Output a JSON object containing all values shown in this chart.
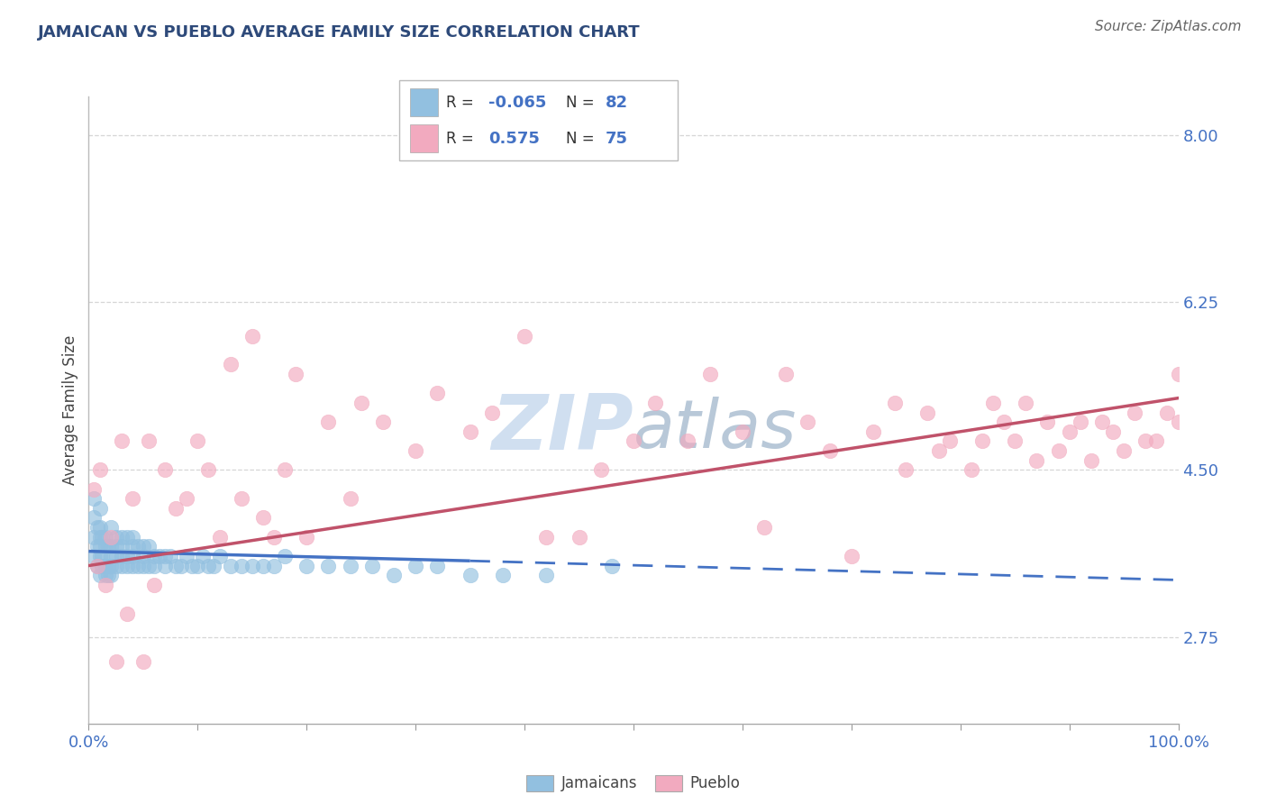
{
  "title": "JAMAICAN VS PUEBLO AVERAGE FAMILY SIZE CORRELATION CHART",
  "source": "Source: ZipAtlas.com",
  "ylabel": "Average Family Size",
  "xlim": [
    0,
    100
  ],
  "ylim": [
    1.85,
    8.4
  ],
  "yticks": [
    2.75,
    4.5,
    6.25,
    8.0
  ],
  "title_color": "#2E4A7A",
  "axis_color": "#4472C4",
  "source_color": "#666666",
  "blue_color": "#92C0E0",
  "pink_color": "#F2AABF",
  "blue_line_color": "#4472C4",
  "pink_line_color": "#C0526A",
  "grid_color": "#CCCCCC",
  "watermark_color": "#D0DFF0",
  "legend_R_blue": "-0.065",
  "legend_N_blue": "82",
  "legend_R_pink": "0.575",
  "legend_N_pink": "75",
  "blue_scatter_x": [
    0.5,
    0.5,
    0.5,
    0.5,
    0.8,
    0.8,
    0.8,
    1.0,
    1.0,
    1.0,
    1.0,
    1.0,
    1.0,
    1.2,
    1.2,
    1.2,
    1.5,
    1.5,
    1.5,
    1.5,
    1.8,
    1.8,
    1.8,
    2.0,
    2.0,
    2.0,
    2.0,
    2.0,
    2.5,
    2.5,
    2.5,
    2.5,
    3.0,
    3.0,
    3.0,
    3.0,
    3.5,
    3.5,
    3.5,
    4.0,
    4.0,
    4.0,
    4.0,
    4.5,
    4.5,
    5.0,
    5.0,
    5.0,
    5.5,
    5.5,
    6.0,
    6.0,
    6.5,
    7.0,
    7.0,
    7.5,
    8.0,
    8.5,
    9.0,
    9.5,
    10.0,
    10.5,
    11.0,
    11.5,
    12.0,
    13.0,
    14.0,
    15.0,
    16.0,
    17.0,
    18.0,
    20.0,
    22.0,
    24.0,
    26.0,
    28.0,
    30.0,
    32.0,
    35.0,
    38.0,
    42.0,
    48.0
  ],
  "blue_scatter_y": [
    3.6,
    3.8,
    4.0,
    4.2,
    3.5,
    3.7,
    3.9,
    3.4,
    3.6,
    3.7,
    3.8,
    3.9,
    4.1,
    3.5,
    3.6,
    3.8,
    3.4,
    3.5,
    3.7,
    3.8,
    3.4,
    3.5,
    3.7,
    3.4,
    3.5,
    3.6,
    3.7,
    3.9,
    3.5,
    3.6,
    3.7,
    3.8,
    3.5,
    3.6,
    3.7,
    3.8,
    3.5,
    3.6,
    3.8,
    3.5,
    3.6,
    3.7,
    3.8,
    3.5,
    3.7,
    3.5,
    3.6,
    3.7,
    3.5,
    3.7,
    3.5,
    3.6,
    3.6,
    3.5,
    3.6,
    3.6,
    3.5,
    3.5,
    3.6,
    3.5,
    3.5,
    3.6,
    3.5,
    3.5,
    3.6,
    3.5,
    3.5,
    3.5,
    3.5,
    3.5,
    3.6,
    3.5,
    3.5,
    3.5,
    3.5,
    3.4,
    3.5,
    3.5,
    3.4,
    3.4,
    3.4,
    3.5
  ],
  "pink_scatter_x": [
    0.5,
    0.8,
    1.0,
    1.5,
    2.0,
    2.5,
    3.0,
    3.5,
    4.0,
    5.0,
    5.5,
    6.0,
    7.0,
    8.0,
    9.0,
    10.0,
    11.0,
    12.0,
    13.0,
    14.0,
    15.0,
    16.0,
    17.0,
    18.0,
    19.0,
    20.0,
    22.0,
    24.0,
    25.0,
    27.0,
    30.0,
    32.0,
    35.0,
    37.0,
    40.0,
    42.0,
    45.0,
    47.0,
    50.0,
    52.0,
    55.0,
    57.0,
    60.0,
    62.0,
    64.0,
    66.0,
    68.0,
    70.0,
    72.0,
    75.0,
    77.0,
    79.0,
    81.0,
    83.0,
    85.0,
    87.0,
    89.0,
    91.0,
    93.0,
    95.0,
    97.0,
    99.0,
    100.0,
    100.0,
    98.0,
    96.0,
    94.0,
    92.0,
    90.0,
    88.0,
    86.0,
    84.0,
    82.0,
    78.0,
    74.0
  ],
  "pink_scatter_y": [
    4.3,
    3.5,
    4.5,
    3.3,
    3.8,
    2.5,
    4.8,
    3.0,
    4.2,
    2.5,
    4.8,
    3.3,
    4.5,
    4.1,
    4.2,
    4.8,
    4.5,
    3.8,
    5.6,
    4.2,
    5.9,
    4.0,
    3.8,
    4.5,
    5.5,
    3.8,
    5.0,
    4.2,
    5.2,
    5.0,
    4.7,
    5.3,
    4.9,
    5.1,
    5.9,
    3.8,
    3.8,
    4.5,
    4.8,
    5.2,
    4.8,
    5.5,
    4.9,
    3.9,
    5.5,
    5.0,
    4.7,
    3.6,
    4.9,
    4.5,
    5.1,
    4.8,
    4.5,
    5.2,
    4.8,
    4.6,
    4.7,
    5.0,
    5.0,
    4.7,
    4.8,
    5.1,
    5.0,
    5.5,
    4.8,
    5.1,
    4.9,
    4.6,
    4.9,
    5.0,
    5.2,
    5.0,
    4.8,
    4.7,
    5.2
  ],
  "blue_line_x0": 0,
  "blue_line_x_solid_end": 35,
  "blue_line_x_end": 100,
  "blue_line_y0": 3.65,
  "blue_line_y_solid_end": 3.55,
  "blue_line_y_end": 3.35,
  "pink_line_x0": 0,
  "pink_line_x_end": 100,
  "pink_line_y0": 3.5,
  "pink_line_y_end": 5.25
}
